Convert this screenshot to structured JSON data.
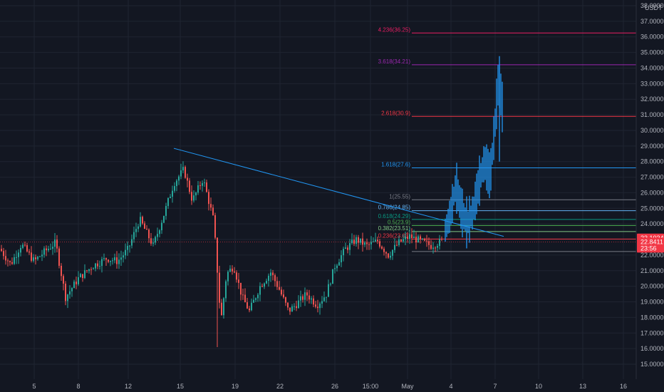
{
  "chart_data": {
    "type": "candlestick",
    "currency": "USDT",
    "ylim": [
      14.5,
      38.5
    ],
    "y_ticks": [
      "15.0000",
      "16.0000",
      "17.0000",
      "18.0000",
      "19.0000",
      "20.0000",
      "21.0000",
      "22.0000",
      "23.0000",
      "24.0000",
      "25.0000",
      "26.0000",
      "27.0000",
      "28.0000",
      "29.0000",
      "30.0000",
      "31.0000",
      "32.0000",
      "33.0000",
      "34.0000",
      "35.0000",
      "36.0000",
      "37.0000",
      "38.0000"
    ],
    "x_ticks": [
      "5",
      "8",
      "12",
      "15",
      "19",
      "22",
      "26",
      "15:00",
      "May",
      "4",
      "7",
      "10",
      "13",
      "16"
    ],
    "fib_levels": [
      {
        "label": "0.236(23.03)",
        "value": 23.03,
        "color": "#f23645"
      },
      {
        "label": "0.382(23.51)",
        "value": 23.51,
        "color": "#81c784"
      },
      {
        "label": "0.5(23.9)",
        "value": 23.9,
        "color": "#4caf50"
      },
      {
        "label": "0.618(24.29)",
        "value": 24.29,
        "color": "#089981"
      },
      {
        "label": "0.786(24.85)",
        "value": 24.85,
        "color": "#64b5f6"
      },
      {
        "label": "1(25.55)",
        "value": 25.55,
        "color": "#787b86"
      },
      {
        "label": "1.618(27.6)",
        "value": 27.6,
        "color": "#2196f3"
      },
      {
        "label": "2.618(30.9)",
        "value": 30.9,
        "color": "#f23645"
      },
      {
        "label": "3.618(34.21)",
        "value": 34.21,
        "color": "#9c27b0"
      },
      {
        "label": "4.236(36.25)",
        "value": 36.25,
        "color": "#e91e63"
      }
    ],
    "fib_base_value": 22.23,
    "trendline": {
      "start": [
        244,
        28.85
      ],
      "end": [
        707,
        23.2
      ],
      "color": "#2196f3"
    },
    "price_badges": [
      {
        "label": "23.1034",
        "value": 23.1034,
        "color": "#f23645"
      },
      {
        "label": "22.8411",
        "value": 22.8411,
        "color": "#f23645"
      },
      {
        "label": "23:56",
        "value": 22.53,
        "color": "#f23645"
      }
    ],
    "current_price_line": 22.84,
    "colors": {
      "up": "#26a69a",
      "down": "#ef5350",
      "projection": "#2196f3"
    }
  }
}
